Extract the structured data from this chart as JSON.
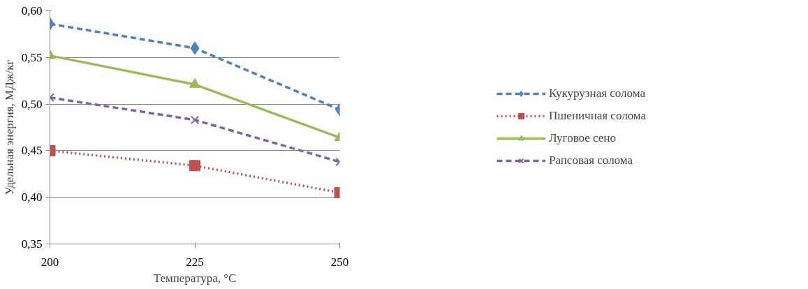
{
  "chart_data": {
    "type": "line",
    "xlabel": "Температура, °C",
    "ylabel": "Удельная энергия, МДж/кг",
    "x": [
      200,
      225,
      250
    ],
    "xlim": [
      200,
      250
    ],
    "xticks": [
      200,
      225,
      250
    ],
    "ylim": [
      0.35,
      0.6
    ],
    "yticks": [
      {
        "value": 0.35,
        "label": "0,35"
      },
      {
        "value": 0.4,
        "label": "0,40"
      },
      {
        "value": 0.45,
        "label": "0,45"
      },
      {
        "value": 0.5,
        "label": "0,50"
      },
      {
        "value": 0.55,
        "label": "0,55"
      },
      {
        "value": 0.6,
        "label": "0,60"
      }
    ],
    "grid": "y",
    "legend": "right",
    "series": [
      {
        "name": "Кукурузная солома",
        "color": "#4f81bd",
        "marker": "diamond",
        "line_style": "dashed",
        "values": [
          0.586,
          0.56,
          0.494
        ]
      },
      {
        "name": "Пшеничная солома",
        "color": "#c0504d",
        "marker": "square",
        "line_style": "dotted",
        "values": [
          0.45,
          0.434,
          0.405
        ]
      },
      {
        "name": "Луговое сено",
        "color": "#9bbb59",
        "marker": "triangle",
        "line_style": "solid",
        "values": [
          0.552,
          0.521,
          0.464
        ]
      },
      {
        "name": "Рапсовая солома",
        "color": "#8064a2",
        "marker": "cross",
        "line_style": "dashed",
        "values": [
          0.507,
          0.483,
          0.438
        ]
      }
    ]
  }
}
